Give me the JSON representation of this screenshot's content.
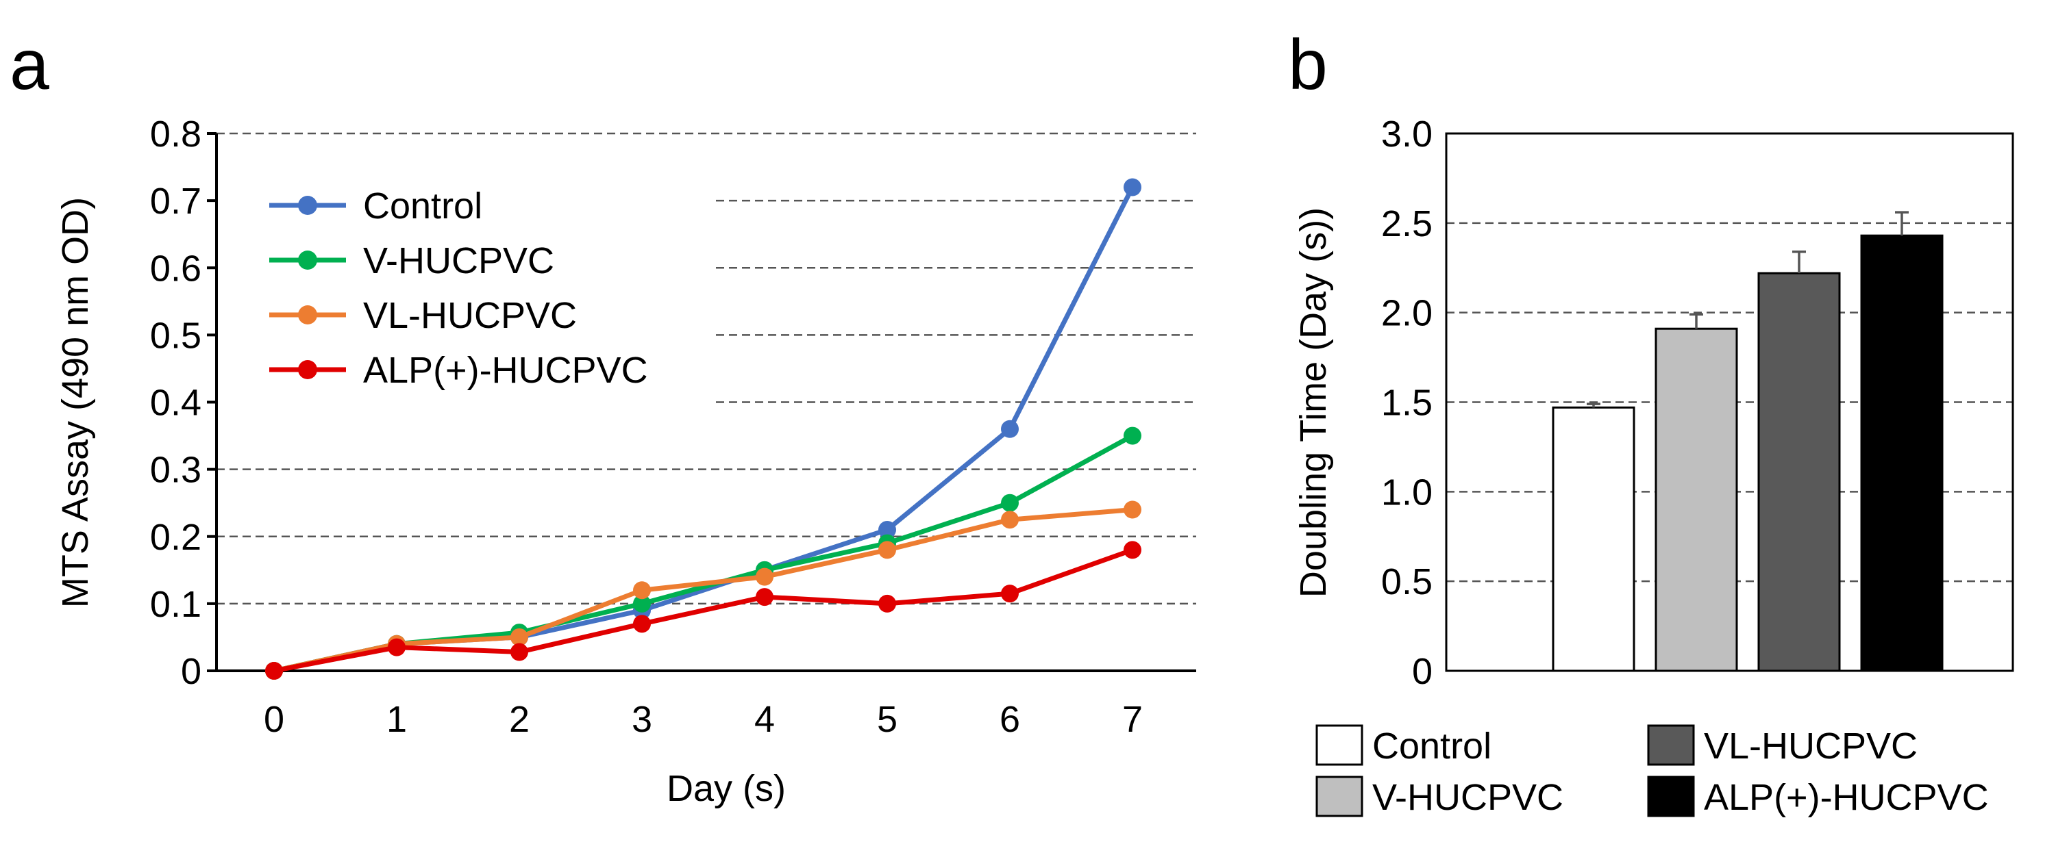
{
  "chart_data": [
    {
      "panel": "a",
      "type": "line",
      "title": "",
      "xlabel": "Day (s)",
      "ylabel": "MTS Assay (490 nm OD)",
      "x": [
        0,
        1,
        2,
        3,
        4,
        5,
        6,
        7
      ],
      "x_tick_labels": [
        "0",
        "1",
        "2",
        "3",
        "4",
        "5",
        "6",
        "7"
      ],
      "y_tick_labels": [
        "0",
        "0.1",
        "0.2",
        "0.3",
        "0.4",
        "0.5",
        "0.6",
        "0.7",
        "0.8"
      ],
      "ylim": [
        0,
        0.8
      ],
      "grid": true,
      "legend_position": "top-left",
      "series": [
        {
          "name": "Control",
          "color": "#4472C4",
          "values": [
            0.0,
            0.04,
            0.05,
            0.09,
            0.15,
            0.21,
            0.36,
            0.72
          ]
        },
        {
          "name": "V-HUCPVC",
          "color": "#00B050",
          "values": [
            0.0,
            0.04,
            0.057,
            0.1,
            0.15,
            0.19,
            0.25,
            0.35
          ]
        },
        {
          "name": "VL-HUCPVC",
          "color": "#ED7D31",
          "values": [
            0.0,
            0.04,
            0.05,
            0.12,
            0.14,
            0.18,
            0.225,
            0.24
          ]
        },
        {
          "name": "ALP(+)-HUCPVC",
          "color": "#E00000",
          "values": [
            0.0,
            0.035,
            0.028,
            0.07,
            0.11,
            0.1,
            0.115,
            0.18
          ]
        }
      ]
    },
    {
      "panel": "b",
      "type": "bar",
      "title": "",
      "xlabel": "",
      "ylabel": "Doubling Time (Day (s))",
      "categories": [
        "Control",
        "V-HUCPVC",
        "VL-HUCPVC",
        "ALP(+)-HUCPVC"
      ],
      "values": [
        1.47,
        1.91,
        2.22,
        2.43
      ],
      "errors": [
        0.02,
        0.08,
        0.12,
        0.13
      ],
      "colors": [
        "#FFFFFF",
        "#BFBFBF",
        "#595959",
        "#000000"
      ],
      "y_tick_labels": [
        "0",
        "0.5",
        "1.0",
        "1.5",
        "2.0",
        "2.5",
        "3.0"
      ],
      "ylim": [
        0,
        3.0
      ],
      "grid": true,
      "legend_position": "bottom"
    }
  ]
}
